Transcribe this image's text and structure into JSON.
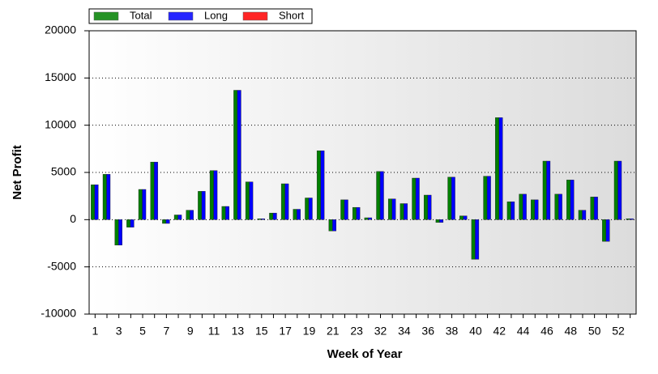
{
  "chart_data": {
    "type": "bar",
    "xlabel": "Week of Year",
    "ylabel": "Net Profit",
    "categories": [
      "1",
      null,
      "3",
      null,
      "5",
      null,
      "7",
      null,
      "9",
      null,
      "11",
      null,
      "13",
      null,
      "15",
      null,
      "17",
      null,
      "19",
      null,
      "21",
      null,
      "23",
      null,
      "32",
      null,
      "34",
      null,
      "36",
      null,
      "38",
      null,
      "40",
      null,
      "42",
      null,
      "44",
      null,
      "46",
      null,
      "48",
      null,
      "50",
      null,
      "52",
      null
    ],
    "series": [
      {
        "name": "Total",
        "color": "#008000",
        "values": [
          3700,
          4800,
          -2700,
          -800,
          3200,
          6100,
          -400,
          500,
          1000,
          3000,
          5200,
          1400,
          13700,
          4000,
          100,
          700,
          3800,
          1100,
          2300,
          7300,
          -1200,
          2100,
          1300,
          200,
          5100,
          2200,
          1700,
          4400,
          2600,
          -300,
          4500,
          400,
          -4200,
          4600,
          10800,
          1900,
          2700,
          2100,
          6200,
          2700,
          4200,
          1000,
          2400,
          -2300,
          6200,
          100
        ]
      },
      {
        "name": "Long",
        "color": "#0000ff",
        "values": [
          3700,
          4800,
          -2700,
          -800,
          3200,
          6100,
          -400,
          500,
          1000,
          3000,
          5200,
          1400,
          13700,
          4000,
          100,
          700,
          3800,
          1100,
          2300,
          7300,
          -1200,
          2100,
          1300,
          200,
          5100,
          2200,
          1700,
          4400,
          2600,
          -300,
          4500,
          400,
          -4200,
          4600,
          10800,
          1900,
          2700,
          2100,
          6200,
          2700,
          4200,
          1000,
          2400,
          -2300,
          6200,
          100
        ]
      },
      {
        "name": "Short",
        "color": "#ff0000",
        "values": [
          0,
          0,
          0,
          0,
          0,
          0,
          0,
          0,
          0,
          0,
          0,
          0,
          0,
          0,
          0,
          0,
          0,
          0,
          0,
          0,
          0,
          0,
          0,
          0,
          0,
          0,
          0,
          0,
          0,
          0,
          0,
          0,
          0,
          0,
          0,
          0,
          0,
          0,
          0,
          0,
          0,
          0,
          0,
          0,
          0,
          0
        ]
      }
    ],
    "ylim": [
      -10000,
      20000
    ],
    "yticks": [
      -10000,
      -5000,
      0,
      5000,
      10000,
      15000,
      20000
    ],
    "grid": true
  }
}
